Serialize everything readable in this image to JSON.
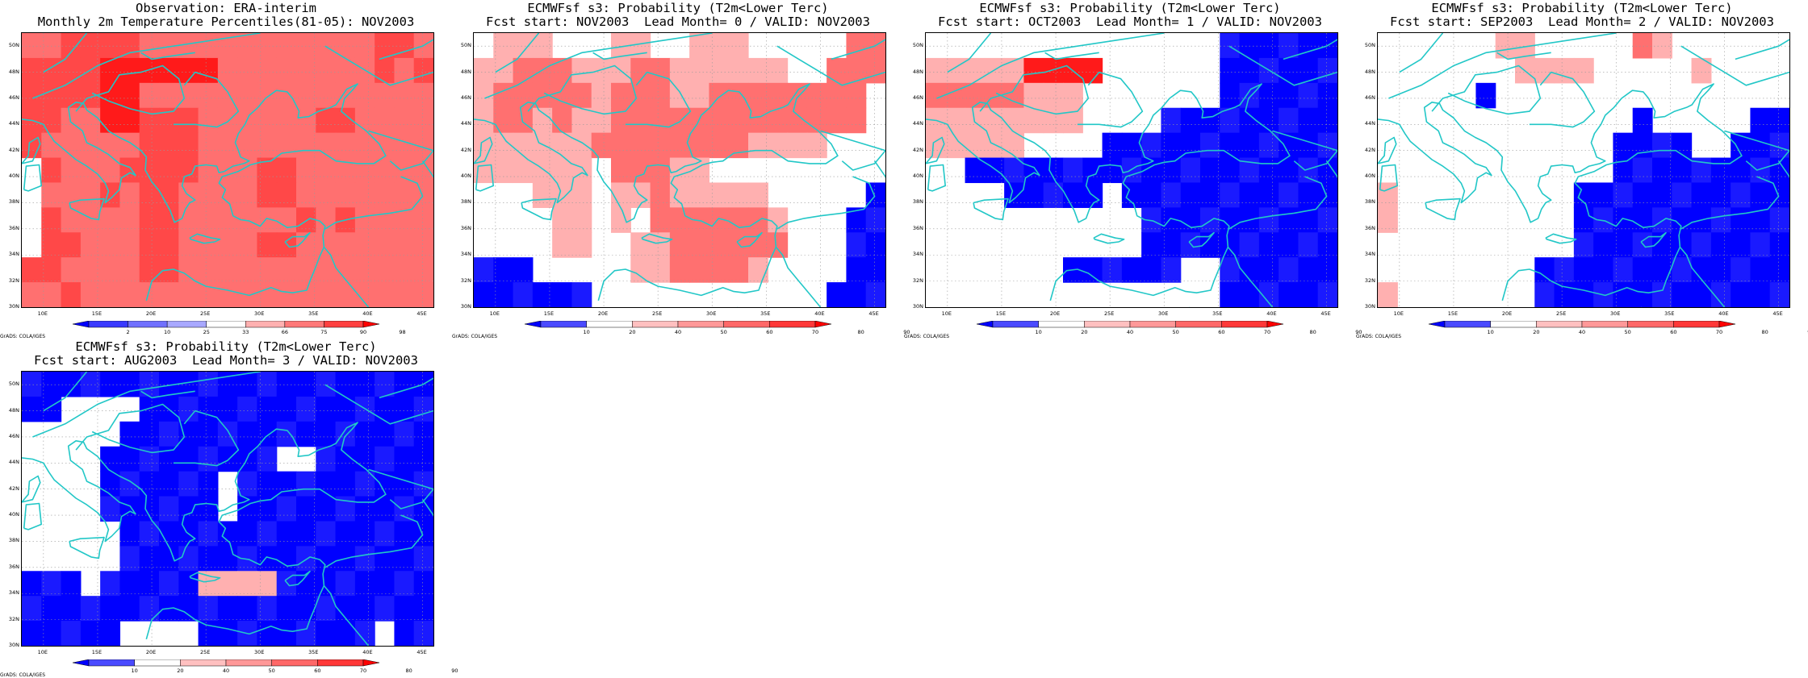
{
  "colors": {
    "coast": "#22c7c7",
    "grid": "#9a9a9a"
  },
  "lat_labels": [
    "30N",
    "32N",
    "34N",
    "36N",
    "38N",
    "40N",
    "42N",
    "44N",
    "46N",
    "48N",
    "50N"
  ],
  "lon_labels": [
    "10E",
    "15E",
    "20E",
    "25E",
    "30E",
    "35E",
    "40E",
    "45E"
  ],
  "credit": "GrADS: COLA/IGES",
  "panels": [
    {
      "title": "Observation: ERA-interim",
      "subtitle": "Monthly 2m Temperature Percentiles(81-05): NOV2003",
      "colorbar": {
        "labels": [
          "2",
          "10",
          "25",
          "33",
          "66",
          "75",
          "90",
          "98"
        ],
        "colors": [
          "#0000ff",
          "#3a3aff",
          "#7070ff",
          "#a8a8ff",
          "#ffffff",
          "#ffb0b0",
          "#ff7878",
          "#ff4040",
          "#ff0000"
        ]
      },
      "grid": [
        "223333222222222222332",
        "333344444422222222323",
        "333344222222222222222",
        "332244333222222332222",
        "322222333222222222222",
        "032223333222332222222",
        "022232332222332222222",
        "032222332222223232222",
        "033222332222332222222",
        "332222332222222222222",
        "223222222222222222222"
      ],
      "legend_map": {
        "0": "#ffffff",
        "1": "#ffb0b0",
        "2": "#ff7070",
        "3": "#ff4848",
        "4": "#ff1a1a",
        "5": "#7070ff",
        "6": "#0000ff"
      }
    },
    {
      "title": "ECMWFsf s3: Probability (T2m<Lower Terc)",
      "subtitle": "Fcst start: NOV2003  Lead Month= 0 / VALID: NOV2003",
      "colorbar": {
        "labels": [
          "10",
          "20",
          "40",
          "50",
          "60",
          "70",
          "80",
          "90"
        ],
        "colors": [
          "#0000ff",
          "#4a4aff",
          "#ffffff",
          "#ffc0c0",
          "#ff9898",
          "#ff6868",
          "#ff3838",
          "#ff0000"
        ]
      },
      "grid": [
        "011100011001110000022",
        "112221112211111100222",
        "122222122211222222220",
        "122121122222222222220",
        "111111222222221111000",
        "111111022211000000000",
        "000111011211111000006",
        "000011010222222100066",
        "000011001122222200066",
        "666000001122221000066",
        "666666000000000000666"
      ]
    },
    {
      "title": "ECMWFsf s3: Probability (T2m<Lower Terc)",
      "subtitle": "Fcst start: OCT2003  Lead Month= 1 / VALID: NOV2003",
      "colorbar": {
        "labels": [
          "10",
          "20",
          "40",
          "50",
          "60",
          "70",
          "80",
          "90"
        ],
        "colors": [
          "#0000ff",
          "#4a4aff",
          "#ffffff",
          "#ffc0c0",
          "#ff9898",
          "#ff6868",
          "#ff3838",
          "#ff0000"
        ]
      },
      "grid": [
        "000000000000000666666",
        "111114444000000666666",
        "222221110000000666666",
        "111111110000666666666",
        "111110000666666666666",
        "006666666666666666666",
        "000066666066666666666",
        "000000000006666666666",
        "000000000006666666666",
        "000000066666600666666",
        "000000000000000666666"
      ]
    },
    {
      "title": "ECMWFsf s3: Probability (T2m<Lower Terc)",
      "subtitle": "Fcst start: SEP2003  Lead Month= 2 / VALID: NOV2003",
      "colorbar": {
        "labels": [
          "10",
          "20",
          "40",
          "50",
          "60",
          "70",
          "80",
          "90"
        ],
        "colors": [
          "#0000ff",
          "#4a4aff",
          "#ffffff",
          "#ffc0c0",
          "#ff9898",
          "#ff6868",
          "#ff3838",
          "#ff0000"
        ]
      },
      "grid": [
        "000000110000021000000",
        "000000011110000010000",
        "000006000000000000000",
        "000000000000060000066",
        "000000000000666600666",
        "000000000000666666666",
        "100000000066666666666",
        "100000000066666666666",
        "000000000066666666666",
        "000000006666666666666",
        "100000006666666666666"
      ]
    },
    {
      "title": "ECMWFsf s3: Probability (T2m<Lower Terc)",
      "subtitle": "Fcst start: AUG2003  Lead Month= 3 / VALID: NOV2003",
      "colorbar": {
        "labels": [
          "10",
          "20",
          "40",
          "50",
          "60",
          "70",
          "80",
          "90"
        ],
        "colors": [
          "#0000ff",
          "#4a4aff",
          "#ffffff",
          "#ffc0c0",
          "#ff9898",
          "#ff6868",
          "#ff3838",
          "#ff0000"
        ]
      },
      "grid": [
        "666666666666666666666",
        "660000666666666666666",
        "000006666666666666666",
        "000066666666600666666",
        "000066666606666666666",
        "000066666606666666666",
        "000006666666666666666",
        "000006666666666666666",
        "666066666111166666666",
        "666666666666666666666",
        "666660000666666666066"
      ]
    }
  ]
}
